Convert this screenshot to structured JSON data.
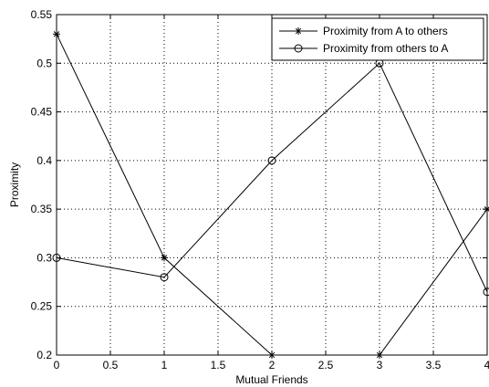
{
  "chart_data": {
    "type": "line",
    "title": "",
    "xlabel": "Mutual Friends",
    "ylabel": "Proximity",
    "xlim": [
      0,
      4
    ],
    "ylim": [
      0.2,
      0.55
    ],
    "x_ticks": [
      0,
      0.5,
      1,
      1.5,
      2,
      2.5,
      3,
      3.5,
      4
    ],
    "x_tick_labels": [
      "0",
      "0.5",
      "1",
      "1.5",
      "2",
      "2.5",
      "3",
      "3.5",
      "4"
    ],
    "y_ticks": [
      0.2,
      0.25,
      0.3,
      0.35,
      0.4,
      0.45,
      0.5,
      0.55
    ],
    "y_tick_labels": [
      "0.2",
      "0.25",
      "0.3",
      "0.35",
      "0.4",
      "0.45",
      "0.5",
      "0.55"
    ],
    "grid": true,
    "legend_position": "top-right",
    "x": [
      0,
      1,
      2,
      3,
      4
    ],
    "series": [
      {
        "name": "Proximity from A to others",
        "marker": "star",
        "color": "#000000",
        "values": [
          0.53,
          0.3,
          0.2,
          0.2,
          0.35
        ]
      },
      {
        "name": "Proximity from others to A",
        "marker": "circle",
        "color": "#000000",
        "values": [
          0.3,
          0.28,
          0.4,
          0.5,
          0.265
        ]
      }
    ]
  }
}
